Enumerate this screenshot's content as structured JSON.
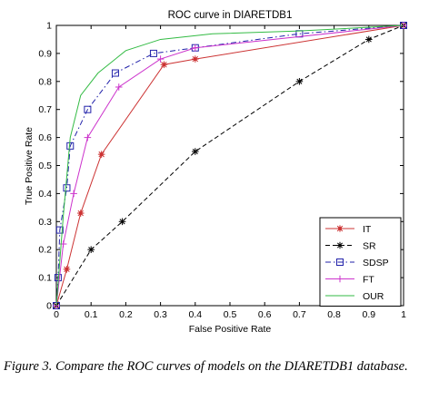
{
  "chart_data": {
    "type": "line",
    "title": "ROC curve in DIARETDB1",
    "xlabel": "False Positive Rate",
    "ylabel": "True Positive Rate",
    "xlim": [
      0,
      1
    ],
    "ylim": [
      0,
      1
    ],
    "x_ticks": [
      "0",
      "0.1",
      "0.2",
      "0.3",
      "0.4",
      "0.5",
      "0.6",
      "0.7",
      "0.8",
      "0.9",
      "1"
    ],
    "y_ticks": [
      "0",
      "0.1",
      "0.2",
      "0.3",
      "0.4",
      "0.5",
      "0.6",
      "0.7",
      "0.8",
      "0.9",
      "1"
    ],
    "grid": false,
    "legend_position": "bottom-right",
    "series": [
      {
        "name": "IT",
        "color": "#cc3333",
        "dash": "solid",
        "marker": "star",
        "x": [
          0,
          0.03,
          0.07,
          0.13,
          0.31,
          0.4,
          1
        ],
        "y": [
          0,
          0.13,
          0.33,
          0.54,
          0.86,
          0.88,
          1
        ]
      },
      {
        "name": "SR",
        "color": "#000000",
        "dash": "dashed",
        "marker": "asterisk",
        "x": [
          0,
          0.1,
          0.19,
          0.4,
          0.7,
          0.9,
          1
        ],
        "y": [
          0,
          0.2,
          0.3,
          0.55,
          0.8,
          0.95,
          1
        ]
      },
      {
        "name": "SDSP",
        "color": "#2222aa",
        "dash": "dashdot",
        "marker": "square",
        "x": [
          0,
          0.005,
          0.01,
          0.03,
          0.04,
          0.09,
          0.17,
          0.28,
          0.4,
          0.7,
          1
        ],
        "y": [
          0,
          0.1,
          0.27,
          0.42,
          0.57,
          0.7,
          0.83,
          0.9,
          0.92,
          0.97,
          1
        ]
      },
      {
        "name": "FT",
        "color": "#cc33cc",
        "dash": "solid",
        "marker": "plus",
        "x": [
          0,
          0.02,
          0.05,
          0.09,
          0.18,
          0.3,
          0.4,
          1
        ],
        "y": [
          0,
          0.22,
          0.4,
          0.6,
          0.78,
          0.88,
          0.92,
          1
        ]
      },
      {
        "name": "OUR",
        "color": "#33bb44",
        "dash": "solid",
        "marker": "none",
        "x": [
          0,
          0.02,
          0.04,
          0.07,
          0.12,
          0.2,
          0.3,
          0.45,
          0.7,
          1
        ],
        "y": [
          0,
          0.32,
          0.6,
          0.75,
          0.83,
          0.91,
          0.95,
          0.97,
          0.98,
          1
        ]
      }
    ]
  },
  "caption": {
    "lead": "Figure 3.",
    "text": "Compare the ROC curves of models on the DIARETDB1 database."
  }
}
